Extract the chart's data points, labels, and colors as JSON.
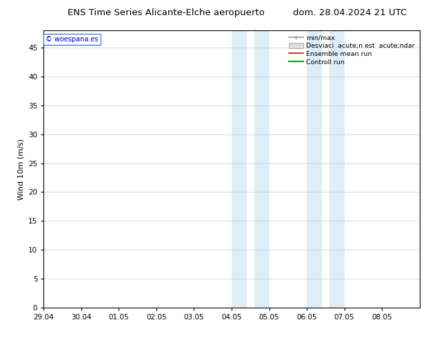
{
  "title_left": "ENS Time Series Alicante-Elche aeropuerto",
  "title_right": "dom. 28.04.2024 21 UTC",
  "ylabel": "Wind 10m (m/s)",
  "watermark": "© woespana.es",
  "xlim_left": 0,
  "xlim_right": 10,
  "ylim_bottom": 0,
  "ylim_top": 48,
  "yticks": [
    0,
    5,
    10,
    15,
    20,
    25,
    30,
    35,
    40,
    45
  ],
  "xtick_labels": [
    "29.04",
    "30.04",
    "01.05",
    "02.05",
    "03.05",
    "04.05",
    "05.05",
    "06.05",
    "07.05",
    "08.05"
  ],
  "xtick_positions": [
    0,
    1,
    2,
    3,
    4,
    5,
    6,
    7,
    8,
    9
  ],
  "shaded_bands": [
    {
      "x_start": 5.0,
      "x_end": 5.4,
      "color": "#ddeef8"
    },
    {
      "x_start": 5.6,
      "x_end": 6.0,
      "color": "#ddeef8"
    },
    {
      "x_start": 7.0,
      "x_end": 7.4,
      "color": "#ddeef8"
    },
    {
      "x_start": 7.6,
      "x_end": 8.0,
      "color": "#ddeef8"
    }
  ],
  "bg_color": "#ffffff",
  "plot_bg_color": "#ffffff",
  "title_fontsize": 9.5,
  "axis_fontsize": 8,
  "tick_fontsize": 7.5
}
